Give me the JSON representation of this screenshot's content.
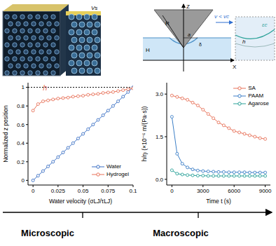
{
  "chart_data": [
    {
      "type": "scatter",
      "x_label": "Water velocity (σLJ/τLJ)",
      "y_label": "Normalized z position",
      "xlim": [
        -0.005,
        0.1
      ],
      "ylim": [
        -0.05,
        1.05
      ],
      "xticks": [
        0,
        0.025,
        0.05,
        0.075,
        0.1
      ],
      "yticks": [
        0,
        0.2,
        0.4,
        0.6,
        0.8,
        1
      ],
      "hlines": [
        1
      ],
      "legend": "lower right",
      "annotations": [
        {
          "text": "h",
          "x": 0.012,
          "y": 0.93,
          "color": "#e8735a"
        }
      ],
      "x": [
        0,
        0.005,
        0.01,
        0.015,
        0.02,
        0.025,
        0.03,
        0.035,
        0.04,
        0.045,
        0.05,
        0.055,
        0.06,
        0.065,
        0.07,
        0.075,
        0.08,
        0.085,
        0.09,
        0.095,
        0.1
      ],
      "series": [
        {
          "name": "Water",
          "color": "#3a6fc4",
          "marker": "circle",
          "line_style": "solid",
          "values": [
            0,
            0.05,
            0.1,
            0.15,
            0.2,
            0.25,
            0.3,
            0.35,
            0.4,
            0.45,
            0.5,
            0.55,
            0.6,
            0.65,
            0.7,
            0.75,
            0.8,
            0.85,
            0.9,
            0.95,
            1
          ]
        },
        {
          "name": "Hydrogel",
          "color": "#e8735a",
          "marker": "circle",
          "line_style": "solid",
          "values": [
            0.75,
            0.82,
            0.85,
            0.86,
            0.87,
            0.88,
            0.885,
            0.89,
            0.9,
            0.905,
            0.91,
            0.92,
            0.925,
            0.93,
            0.94,
            0.945,
            0.95,
            0.96,
            0.97,
            0.98,
            0.99
          ]
        }
      ]
    },
    {
      "type": "scatter",
      "x_label": "Time t (s)",
      "y_label": "h/ηₗ (×10⁻⁶ m/(Pa·s))",
      "xlim": [
        -500,
        9500
      ],
      "ylim": [
        -0.2,
        3.4
      ],
      "xticks": [
        0,
        3000,
        6000,
        9000
      ],
      "yticks": [
        {
          "value": 0,
          "label": "0.0"
        },
        {
          "value": 1.5,
          "label": "1.5"
        },
        {
          "value": 3,
          "label": "3.0"
        }
      ],
      "legend": "upper right",
      "x": [
        0,
        500,
        1000,
        1500,
        2000,
        2500,
        3000,
        3500,
        4000,
        4500,
        5000,
        5500,
        6000,
        6500,
        7000,
        7500,
        8000,
        8500,
        9000
      ],
      "series": [
        {
          "name": "SA",
          "color": "#e8735a",
          "marker": "circle",
          "line_style": "solid",
          "values": [
            2.95,
            2.9,
            2.85,
            2.8,
            2.7,
            2.6,
            2.45,
            2.3,
            2.15,
            2.0,
            1.9,
            1.8,
            1.7,
            1.65,
            1.6,
            1.55,
            1.5,
            1.45,
            1.42
          ]
        },
        {
          "name": "PAAM",
          "color": "#3d7fc7",
          "marker": "circle",
          "line_style": "solid",
          "values": [
            2.2,
            0.9,
            0.55,
            0.42,
            0.35,
            0.31,
            0.29,
            0.28,
            0.27,
            0.26,
            0.26,
            0.25,
            0.25,
            0.25,
            0.25,
            0.24,
            0.24,
            0.24,
            0.24
          ]
        },
        {
          "name": "Agarose",
          "color": "#2aa198",
          "marker": "circle",
          "line_style": "solid",
          "values": [
            0.32,
            0.2,
            0.17,
            0.15,
            0.14,
            0.13,
            0.13,
            0.12,
            0.12,
            0.12,
            0.12,
            0.12,
            0.12,
            0.12,
            0.12,
            0.12,
            0.12,
            0.12,
            0.12
          ]
        }
      ]
    }
  ],
  "diagram": {
    "render_label": "Vs",
    "contact": {
      "radius": "R",
      "z_axis": "Z",
      "x_axis": "X",
      "velocity": "v < vc",
      "contact_radius": "a",
      "indent": "δ",
      "layer": "H",
      "gap": "h",
      "strain": "εc"
    }
  },
  "scale_axis": {
    "labels": [
      "Microscopic",
      "Macroscopic"
    ]
  }
}
